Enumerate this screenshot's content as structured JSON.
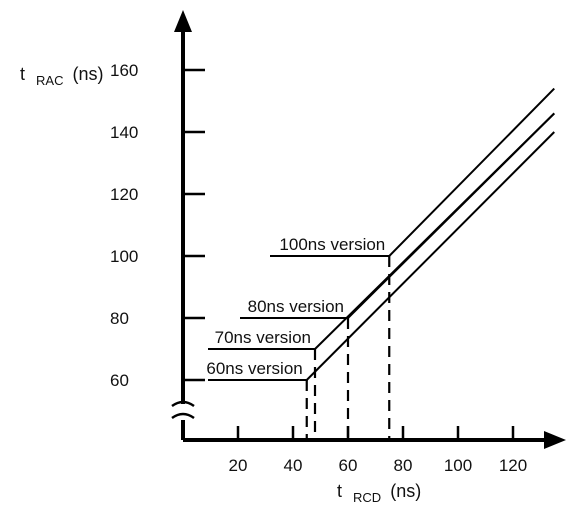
{
  "chart_data": {
    "type": "line",
    "ylabel": {
      "main": "t",
      "sub": "RAC",
      "unit": "(ns)"
    },
    "xlabel": {
      "main": "t",
      "sub": "RCD",
      "unit": "(ns)"
    },
    "xlim": [
      0,
      135
    ],
    "ylim": [
      40,
      165
    ],
    "x_ticks": [
      20,
      40,
      60,
      80,
      100,
      120
    ],
    "y_ticks": [
      60,
      80,
      100,
      120,
      140,
      160
    ],
    "y_axis_break": true,
    "grid": false,
    "series": [
      {
        "name": "60ns version",
        "flat_value": 60,
        "corner_x": 45,
        "points": [
          [
            45,
            60
          ],
          [
            135,
            140
          ]
        ]
      },
      {
        "name": "70ns version",
        "flat_value": 70,
        "corner_x": 48,
        "points": [
          [
            48,
            70
          ],
          [
            135,
            146
          ]
        ]
      },
      {
        "name": "80ns version",
        "flat_value": 80,
        "corner_x": 60,
        "points": [
          [
            60,
            80
          ],
          [
            135,
            146
          ]
        ]
      },
      {
        "name": "100ns version",
        "flat_value": 100,
        "corner_x": 75,
        "points": [
          [
            75,
            100
          ],
          [
            135,
            154
          ]
        ]
      }
    ]
  }
}
